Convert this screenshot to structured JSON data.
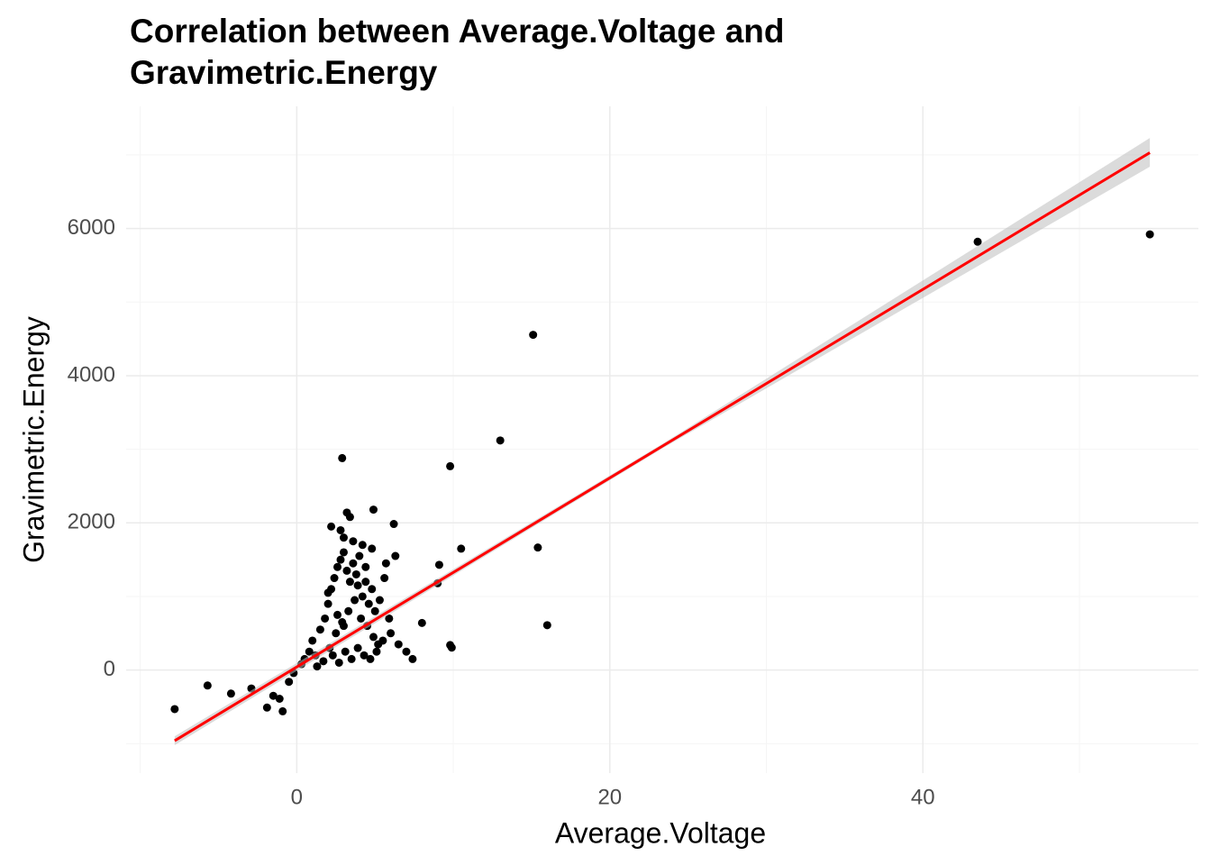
{
  "chart_data": {
    "type": "scatter",
    "title": [
      "Correlation between Average.Voltage and",
      "Gravimetric.Energy"
    ],
    "x_label": "Average.Voltage",
    "y_label": "Gravimetric.Energy",
    "xlim": [
      -10.9,
      57.6
    ],
    "ylim": [
      -1400,
      7660
    ],
    "xticks": [
      0,
      20,
      40
    ],
    "yticks": [
      0,
      2000,
      4000,
      6000
    ],
    "xticks_minor": [
      -10,
      10,
      30,
      50
    ],
    "yticks_minor": [
      -1000,
      1000,
      3000,
      5000,
      7000
    ],
    "grid": true,
    "point_color": "#000000",
    "fit_color": "#ff0000",
    "band_color": "#bebebe",
    "points": {
      "x": [
        43.5,
        54.5,
        15.1,
        13.0,
        9.8,
        2.9,
        10.5,
        15.4,
        16.0,
        9.8,
        9.9,
        9.1,
        9.0,
        8.0,
        6.2,
        4.9,
        3.2,
        -7.8,
        -5.7,
        -4.2,
        -2.9,
        -1.9,
        -0.9,
        -1.1,
        -0.5,
        -1.5,
        -0.2,
        0.3,
        0.5,
        0.8,
        1.0,
        1.2,
        1.5,
        1.8,
        2.0,
        2.2,
        2.4,
        2.6,
        2.8,
        3.0,
        3.2,
        3.4,
        3.6,
        3.8,
        4.0,
        4.2,
        4.4,
        4.6,
        4.8,
        5.0,
        5.3,
        5.6,
        5.9,
        2.1,
        2.5,
        2.9,
        3.3,
        3.7,
        4.1,
        4.5,
        4.9,
        5.2,
        1.7,
        2.3,
        2.7,
        3.1,
        3.5,
        3.9,
        4.3,
        4.7,
        5.1,
        5.5,
        6.0,
        6.5,
        7.0,
        7.4,
        1.3,
        2.0,
        2.6,
        3.0,
        3.6,
        4.2,
        4.8,
        3.4,
        2.8,
        3.9,
        4.4,
        5.7,
        6.3,
        3.0,
        2.2
      ],
      "y": [
        5820,
        5920,
        4555,
        3120,
        2770,
        2880,
        1650,
        1665,
        610,
        340,
        305,
        1430,
        1180,
        640,
        1985,
        2180,
        2140,
        -530,
        -210,
        -320,
        -250,
        -510,
        -560,
        -390,
        -160,
        -350,
        -40,
        80,
        150,
        250,
        400,
        200,
        550,
        700,
        900,
        1100,
        1250,
        1400,
        1500,
        1600,
        1350,
        1200,
        1450,
        1300,
        1550,
        1000,
        1200,
        900,
        1100,
        800,
        950,
        1250,
        700,
        300,
        500,
        650,
        800,
        950,
        700,
        600,
        450,
        350,
        120,
        200,
        100,
        250,
        150,
        300,
        200,
        150,
        250,
        400,
        500,
        350,
        250,
        150,
        50,
        1050,
        750,
        1800,
        1750,
        1700,
        1650,
        2080,
        1900,
        1150,
        1400,
        1450,
        1550,
        600,
        1950
      ],
      "_": null
    },
    "fit": {
      "x": [
        -7.8,
        23.3,
        54.5
      ],
      "y": [
        -960,
        3035,
        7030
      ],
      "lower": [
        -1020,
        3005,
        6840
      ],
      "upper": [
        -900,
        3065,
        7230
      ]
    }
  }
}
